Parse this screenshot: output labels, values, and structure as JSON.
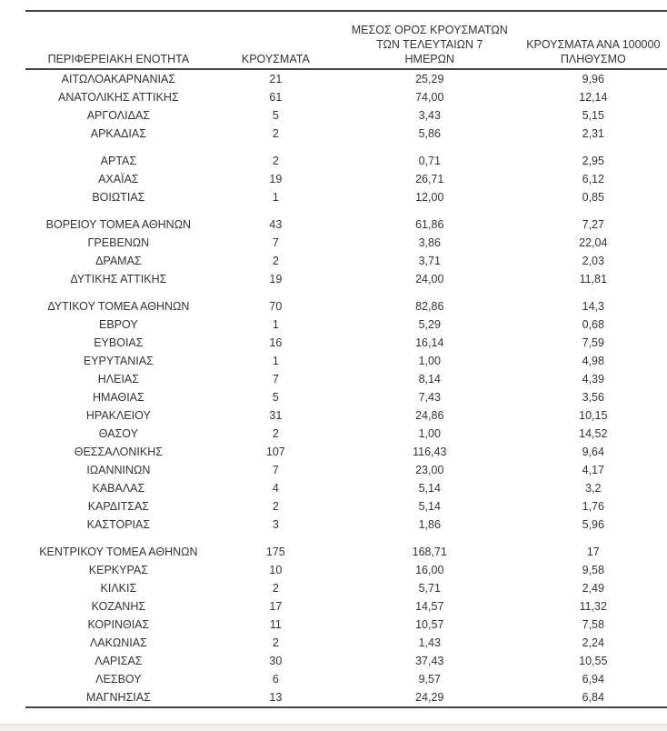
{
  "page": {
    "background": "#ffffff",
    "rule_color": "#424242",
    "text_color": "#333333",
    "bottom_strip_color": "#f2f0ed"
  },
  "table": {
    "columns": [
      {
        "id": "region",
        "lines": [
          "ΠΕΡΙΦΕΡΕΙΑΚΗ ΕΝΟΤΗΤΑ"
        ]
      },
      {
        "id": "cases",
        "lines": [
          "ΚΡΟΥΣΜΑΤΑ"
        ]
      },
      {
        "id": "avg7",
        "lines": [
          "ΜΕΣΟΣ ΟΡΟΣ ΚΡΟΥΣΜΑΤΩΝ",
          "ΤΩΝ ΤΕΛΕΥΤΑΙΩΝ 7",
          "ΗΜΕΡΩΝ"
        ]
      },
      {
        "id": "per100k",
        "lines": [
          "ΚΡΟΥΣΜΑΤΑ ΑΝΑ 100000",
          "ΠΛΗΘΥΣΜΟ"
        ]
      }
    ],
    "gap_before_indices": [
      4,
      7,
      11,
      24
    ],
    "rows": [
      [
        "ΑΙΤΩΛΟΑΚΑΡΝΑΝΙΑΣ",
        "21",
        "25,29",
        "9,96"
      ],
      [
        "ΑΝΑΤΟΛΙΚΗΣ ΑΤΤΙΚΗΣ",
        "61",
        "74,00",
        "12,14"
      ],
      [
        "ΑΡΓΟΛΙΔΑΣ",
        "5",
        "3,43",
        "5,15"
      ],
      [
        "ΑΡΚΑΔΙΑΣ",
        "2",
        "5,86",
        "2,31"
      ],
      [
        "ΑΡΤΑΣ",
        "2",
        "0,71",
        "2,95"
      ],
      [
        "ΑΧΑΪΑΣ",
        "19",
        "26,71",
        "6,12"
      ],
      [
        "ΒΟΙΩΤΙΑΣ",
        "1",
        "12,00",
        "0,85"
      ],
      [
        "ΒΟΡΕΙΟΥ ΤΟΜΕΑ ΑΘΗΝΩΝ",
        "43",
        "61,86",
        "7,27"
      ],
      [
        "ΓΡΕΒΕΝΩΝ",
        "7",
        "3,86",
        "22,04"
      ],
      [
        "ΔΡΑΜΑΣ",
        "2",
        "3,71",
        "2,03"
      ],
      [
        "ΔΥΤΙΚΗΣ ΑΤΤΙΚΗΣ",
        "19",
        "24,00",
        "11,81"
      ],
      [
        "ΔΥΤΙΚΟΥ ΤΟΜΕΑ ΑΘΗΝΩΝ",
        "70",
        "82,86",
        "14,3"
      ],
      [
        "ΕΒΡΟΥ",
        "1",
        "5,29",
        "0,68"
      ],
      [
        "ΕΥΒΟΙΑΣ",
        "16",
        "16,14",
        "7,59"
      ],
      [
        "ΕΥΡΥΤΑΝΙΑΣ",
        "1",
        "1,00",
        "4,98"
      ],
      [
        "ΗΛΕΙΑΣ",
        "7",
        "8,14",
        "4,39"
      ],
      [
        "ΗΜΑΘΙΑΣ",
        "5",
        "7,43",
        "3,56"
      ],
      [
        "ΗΡΑΚΛΕΙΟΥ",
        "31",
        "24,86",
        "10,15"
      ],
      [
        "ΘΑΣΟΥ",
        "2",
        "1,00",
        "14,52"
      ],
      [
        "ΘΕΣΣΑΛΟΝΙΚΗΣ",
        "107",
        "116,43",
        "9,64"
      ],
      [
        "ΙΩΑΝΝΙΝΩΝ",
        "7",
        "23,00",
        "4,17"
      ],
      [
        "ΚΑΒΑΛΑΣ",
        "4",
        "5,14",
        "3,2"
      ],
      [
        "ΚΑΡΔΙΤΣΑΣ",
        "2",
        "5,14",
        "1,76"
      ],
      [
        "ΚΑΣΤΟΡΙΑΣ",
        "3",
        "1,86",
        "5,96"
      ],
      [
        "ΚΕΝΤΡΙΚΟΥ ΤΟΜΕΑ ΑΘΗΝΩΝ",
        "175",
        "168,71",
        "17"
      ],
      [
        "ΚΕΡΚΥΡΑΣ",
        "10",
        "16,00",
        "9,58"
      ],
      [
        "ΚΙΛΚΙΣ",
        "2",
        "5,71",
        "2,49"
      ],
      [
        "ΚΟΖΑΝΗΣ",
        "17",
        "14,57",
        "11,32"
      ],
      [
        "ΚΟΡΙΝΘΙΑΣ",
        "11",
        "10,57",
        "7,58"
      ],
      [
        "ΛΑΚΩΝΙΑΣ",
        "2",
        "1,43",
        "2,24"
      ],
      [
        "ΛΑΡΙΣΑΣ",
        "30",
        "37,43",
        "10,55"
      ],
      [
        "ΛΕΣΒΟΥ",
        "6",
        "9,57",
        "6,94"
      ],
      [
        "ΜΑΓΝΗΣΙΑΣ",
        "13",
        "24,29",
        "6,84"
      ]
    ]
  }
}
